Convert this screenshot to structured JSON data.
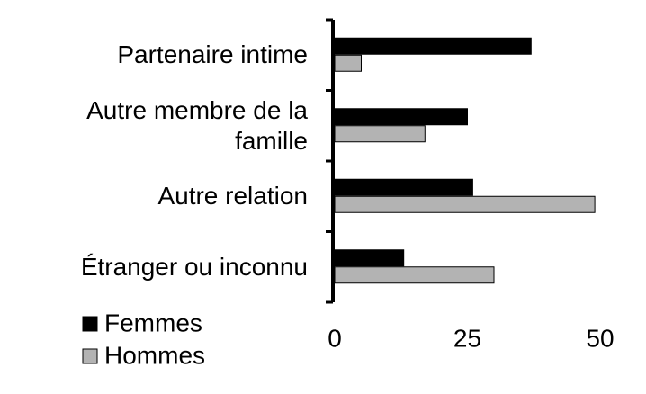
{
  "chart_data": {
    "type": "hbar",
    "categories": [
      "Partenaire intime",
      "Autre membre de la famille",
      "Autre relation",
      "Étranger ou inconnu"
    ],
    "series": [
      {
        "name": "Femmes",
        "color": "#000000",
        "values": [
          37,
          25,
          26,
          13
        ]
      },
      {
        "name": "Hommes",
        "color": "#b3b3b3",
        "values": [
          5,
          17,
          49,
          30
        ]
      }
    ],
    "xlim": [
      0,
      50
    ],
    "xticks": [
      0,
      25,
      50
    ],
    "grid": false,
    "legend": "bottom-left"
  }
}
